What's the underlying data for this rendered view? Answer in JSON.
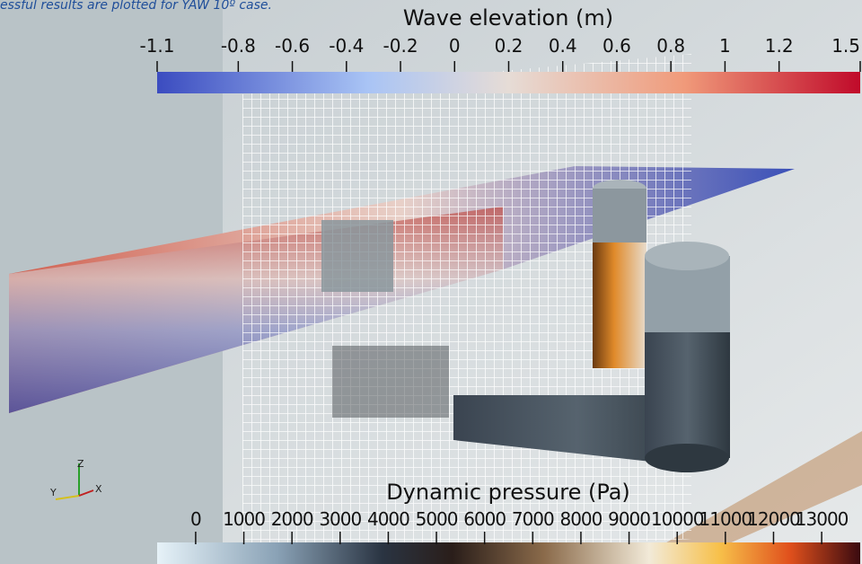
{
  "caption": "essful results are plotted for YAW 10º case.",
  "colorbars": [
    {
      "title": "Wave elevation (m)",
      "range": [
        -1.1,
        1.5
      ],
      "ticks": [
        -1.1,
        -0.8,
        -0.6,
        -0.4,
        -0.2,
        0,
        0.2,
        0.4,
        0.6,
        0.8,
        1,
        1.2,
        1.5
      ]
    },
    {
      "title": "Dynamic pressure (Pa)",
      "range": [
        -800,
        13800
      ],
      "ticks": [
        0,
        1000,
        2000,
        3000,
        4000,
        5000,
        6000,
        7000,
        8000,
        9000,
        10000,
        11000,
        12000,
        13000
      ]
    }
  ],
  "axes_triad": {
    "z": "Z",
    "y": "Y",
    "x": "X"
  }
}
